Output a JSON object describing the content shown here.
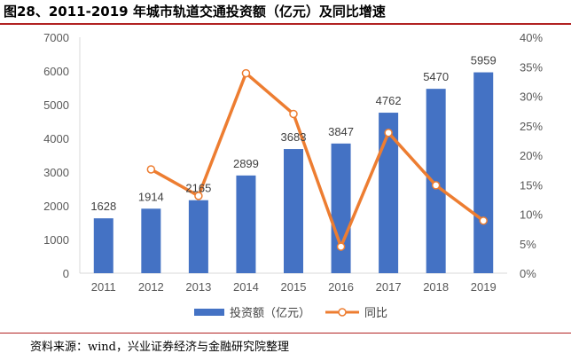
{
  "header": {
    "title": "图28、2011-2019 年城市轨道交通投资额（亿元）及同比增速"
  },
  "footer": {
    "source": "资料来源：wind，兴业证券经济与金融研究院整理"
  },
  "colors": {
    "bar": "#4472c4",
    "line": "#ed7d31",
    "title_rule": "#b22222"
  },
  "chart_data": {
    "type": "bar",
    "title": "图28、2011-2019 年城市轨道交通投资额（亿元）及同比增速",
    "categories": [
      "2011",
      "2012",
      "2013",
      "2014",
      "2015",
      "2016",
      "2017",
      "2018",
      "2019"
    ],
    "series": [
      {
        "name": "投资额（亿元）",
        "type": "bar",
        "axis": "left",
        "values": [
          1628,
          1914,
          2165,
          2899,
          3683,
          3847,
          4762,
          5470,
          5959
        ],
        "labels": [
          "1628",
          "1914",
          "2165",
          "2899",
          "3683",
          "3847",
          "4762",
          "5470",
          "5959"
        ]
      },
      {
        "name": "同比",
        "type": "line",
        "axis": "right",
        "values": [
          null,
          17.6,
          13.1,
          33.9,
          27.0,
          4.5,
          23.8,
          14.9,
          8.9
        ]
      }
    ],
    "y_left": {
      "min": 0,
      "max": 7000,
      "ticks": [
        0,
        1000,
        2000,
        3000,
        4000,
        5000,
        6000,
        7000
      ],
      "tick_labels": [
        "0",
        "1000",
        "2000",
        "3000",
        "4000",
        "5000",
        "6000",
        "7000"
      ]
    },
    "y_right": {
      "min": 0,
      "max": 40,
      "ticks": [
        0,
        5,
        10,
        15,
        20,
        25,
        30,
        35,
        40
      ],
      "tick_labels": [
        "0%",
        "5%",
        "10%",
        "15%",
        "20%",
        "25%",
        "30%",
        "35%",
        "40%"
      ]
    },
    "legend": {
      "position": "bottom",
      "items": [
        "投资额（亿元）",
        "同比"
      ]
    },
    "grid": false
  }
}
